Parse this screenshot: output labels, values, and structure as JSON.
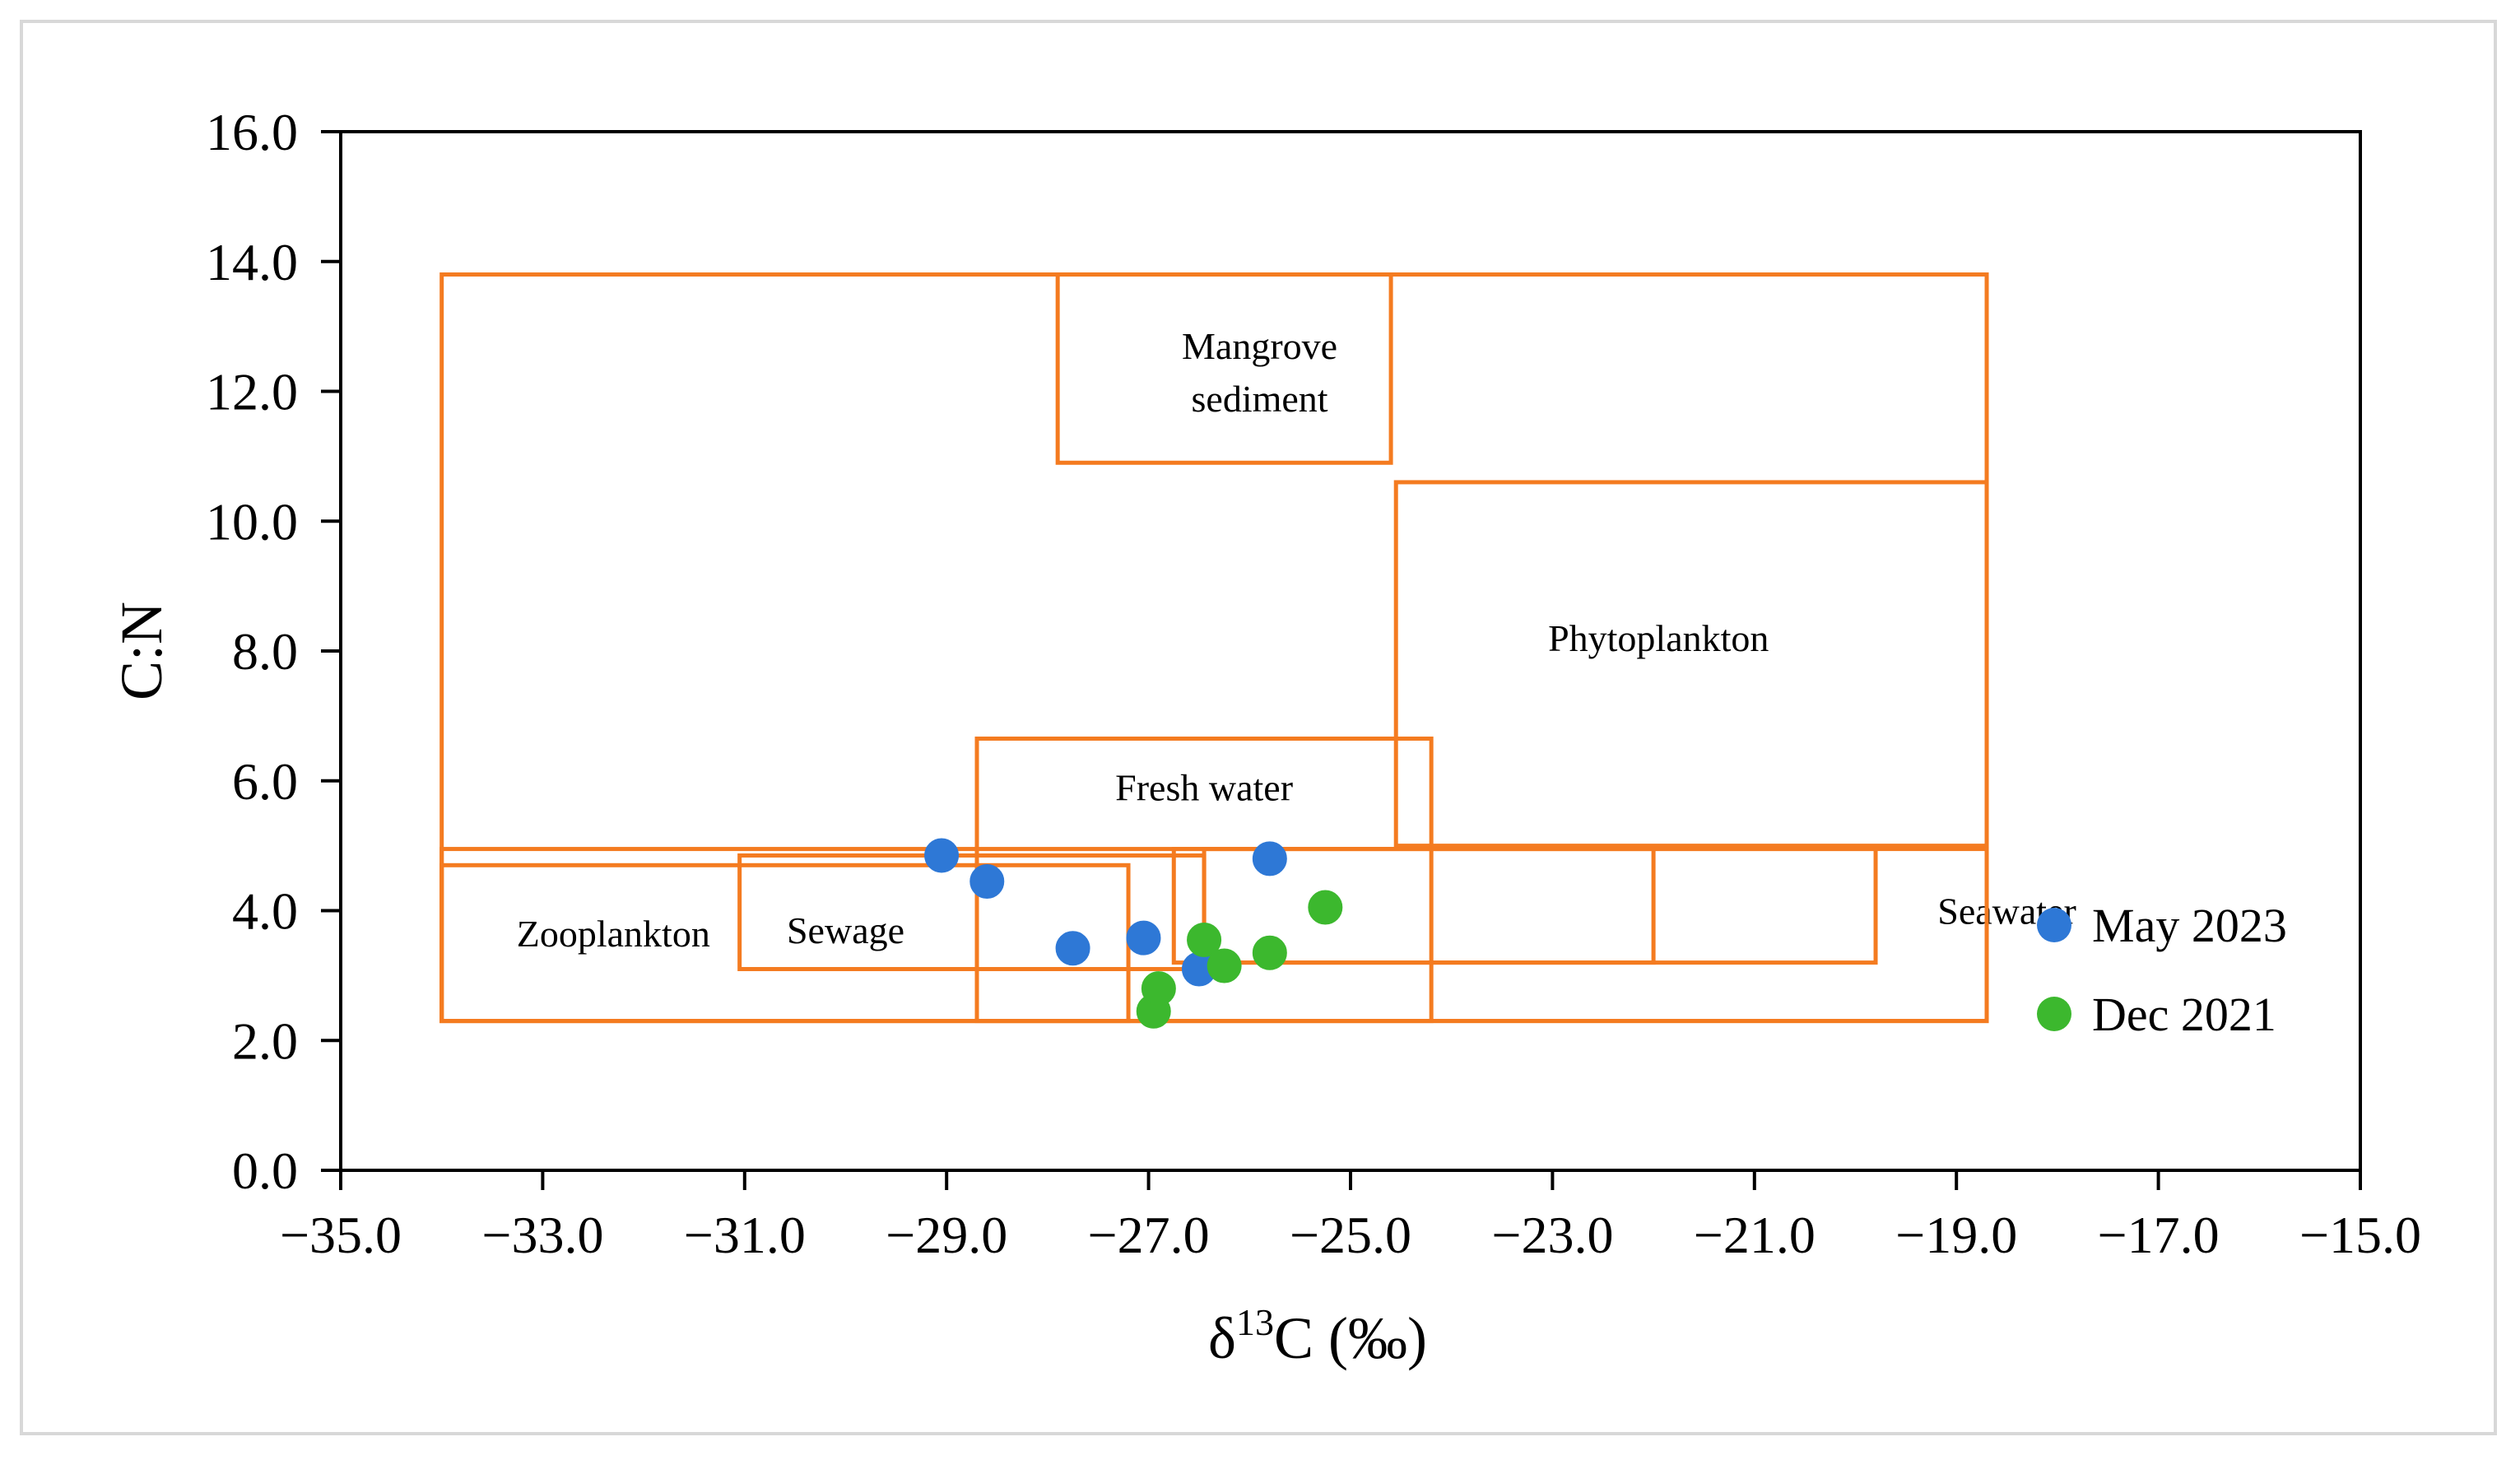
{
  "chart_data": {
    "type": "scatter",
    "title": "",
    "xlabel_main": "δ",
    "xlabel_sup": "13",
    "xlabel_rest": "C (‰)",
    "ylabel": "C:N",
    "xlim": [
      -35.0,
      -15.0
    ],
    "ylim": [
      0.0,
      16.0
    ],
    "x_ticks": [
      {
        "value": -35.0,
        "label": "−35.0"
      },
      {
        "value": -33.0,
        "label": "−33.0"
      },
      {
        "value": -31.0,
        "label": "−31.0"
      },
      {
        "value": -29.0,
        "label": "−29.0"
      },
      {
        "value": -27.0,
        "label": "−27.0"
      },
      {
        "value": -25.0,
        "label": "−25.0"
      },
      {
        "value": -23.0,
        "label": "−23.0"
      },
      {
        "value": -21.0,
        "label": "−21.0"
      },
      {
        "value": -19.0,
        "label": "−19.0"
      },
      {
        "value": -17.0,
        "label": "−17.0"
      },
      {
        "value": -15.0,
        "label": "−15.0"
      }
    ],
    "y_ticks": [
      {
        "value": 0.0,
        "label": "0.0"
      },
      {
        "value": 2.0,
        "label": "2.0"
      },
      {
        "value": 4.0,
        "label": "4.0"
      },
      {
        "value": 6.0,
        "label": "6.0"
      },
      {
        "value": 8.0,
        "label": "8.0"
      },
      {
        "value": 10.0,
        "label": "10.0"
      },
      {
        "value": 12.0,
        "label": "12.0"
      },
      {
        "value": 14.0,
        "label": "14.0"
      },
      {
        "value": 16.0,
        "label": "16.0"
      }
    ],
    "region_color": "#f47b20",
    "regions": [
      {
        "name": "outer-envelope",
        "label": "",
        "x": [
          -34.0,
          -18.7
        ],
        "y": [
          2.3,
          13.8
        ]
      },
      {
        "name": "mangrove-sediment",
        "label_lines": [
          "Mangrove",
          "sediment"
        ],
        "x": [
          -27.9,
          -24.6
        ],
        "y": [
          10.9,
          13.8
        ],
        "label_at": [
          -25.9,
          12.3
        ]
      },
      {
        "name": "phytoplankton",
        "label_lines": [
          "Phytoplankton"
        ],
        "x": [
          -24.55,
          -18.7
        ],
        "y": [
          5.0,
          10.6
        ],
        "label_at": [
          -21.95,
          8.2
        ]
      },
      {
        "name": "fresh-water",
        "label_lines": [
          "Fresh water"
        ],
        "x": [
          -28.7,
          -24.2
        ],
        "y": [
          2.3,
          6.65
        ],
        "label_at": [
          -26.45,
          5.9
        ]
      },
      {
        "name": "zooplankton",
        "label_lines": [
          "Zooplankton"
        ],
        "x": [
          -34.0,
          -27.2
        ],
        "y": [
          2.3,
          4.7
        ],
        "label_at": [
          -32.3,
          3.65
        ]
      },
      {
        "name": "sewage",
        "label_lines": [
          "Sewage"
        ],
        "x": [
          -31.05,
          -26.45
        ],
        "y": [
          3.1,
          4.85
        ],
        "label_at": [
          -30.0,
          3.7
        ]
      },
      {
        "name": "seawater",
        "label_lines": [
          "Seawater"
        ],
        "x": [
          -26.75,
          -19.8
        ],
        "y": [
          3.2,
          4.95
        ],
        "label_at": [
          -18.5,
          4.0
        ]
      },
      {
        "name": "seawater-inner",
        "label_lines": [],
        "x": [
          -26.45,
          -22.0
        ],
        "y": [
          3.2,
          4.95
        ]
      },
      {
        "name": "outer-envelope-lower",
        "label": "",
        "x": [
          -34.0,
          -18.7
        ],
        "y": [
          2.3,
          4.95
        ]
      }
    ],
    "series": [
      {
        "name": "May 2023",
        "color": "#2e78d6",
        "points": [
          [
            -29.05,
            4.85
          ],
          [
            -28.6,
            4.45
          ],
          [
            -27.75,
            3.42
          ],
          [
            -27.05,
            3.58
          ],
          [
            -26.5,
            3.1
          ],
          [
            -25.8,
            4.8
          ]
        ]
      },
      {
        "name": "Dec 2021",
        "color": "#3cb82e",
        "points": [
          [
            -26.95,
            2.45
          ],
          [
            -26.9,
            2.8
          ],
          [
            -26.45,
            3.55
          ],
          [
            -26.25,
            3.15
          ],
          [
            -25.8,
            3.35
          ],
          [
            -25.25,
            4.05
          ]
        ]
      }
    ],
    "legend_position": "right-middle",
    "legend": [
      {
        "label": "May 2023",
        "color": "#2e78d6"
      },
      {
        "label": "Dec 2021",
        "color": "#3cb82e"
      }
    ]
  }
}
